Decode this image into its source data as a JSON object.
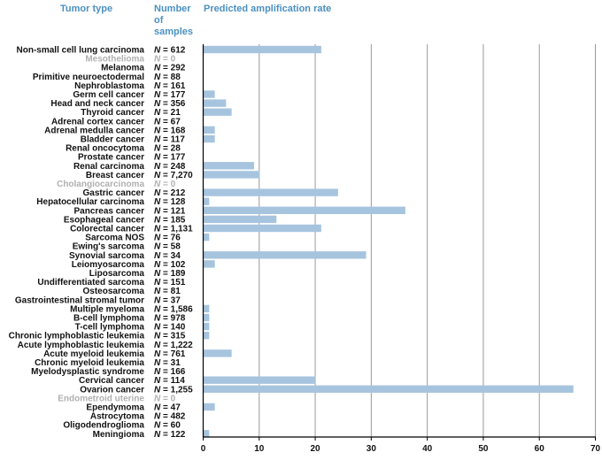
{
  "colors": {
    "header": "#4a90c0",
    "bar": "#a7c4df",
    "label": "#111111",
    "muted": "#b0b0b0",
    "grid": "#9a9a9a"
  },
  "chart_data": {
    "type": "bar",
    "orientation": "horizontal",
    "title": "",
    "column_headers": {
      "tumor_type": "Tumor type",
      "samples": [
        "Number",
        "of",
        "samples"
      ],
      "rate": "Predicted amplification rate"
    },
    "n_prefix": "N",
    "n_sep": " = ",
    "xlim": [
      0,
      70
    ],
    "xticks": [
      0,
      10,
      20,
      30,
      40,
      50,
      60,
      70
    ],
    "grid": true,
    "categories": [
      {
        "name": "Non-small cell lung carcinoma",
        "n": "612",
        "value": 21,
        "muted": false
      },
      {
        "name": "Mesothelioma",
        "n": "0",
        "value": 0,
        "muted": true
      },
      {
        "name": "Melanoma",
        "n": "292",
        "value": 0,
        "muted": false
      },
      {
        "name": "Primitive neuroectodermal",
        "n": "88",
        "value": 0,
        "muted": false
      },
      {
        "name": "Nephroblastoma",
        "n": "161",
        "value": 0,
        "muted": false
      },
      {
        "name": "Germ cell cancer",
        "n": "177",
        "value": 2,
        "muted": false
      },
      {
        "name": "Head and neck cancer",
        "n": "356",
        "value": 4,
        "muted": false
      },
      {
        "name": "Thyroid cancer",
        "n": "21",
        "value": 5,
        "muted": false
      },
      {
        "name": "Adrenal cortex cancer",
        "n": "67",
        "value": 0,
        "muted": false
      },
      {
        "name": "Adrenal medulla cancer",
        "n": "168",
        "value": 2,
        "muted": false
      },
      {
        "name": "Bladder cancer",
        "n": "117",
        "value": 2,
        "muted": false
      },
      {
        "name": "Renal oncocytoma",
        "n": "28",
        "value": 0,
        "muted": false
      },
      {
        "name": "Prostate cancer",
        "n": "177",
        "value": 0,
        "muted": false
      },
      {
        "name": "Renal carcinoma",
        "n": "248",
        "value": 9,
        "muted": false
      },
      {
        "name": "Breast cancer",
        "n": "7,270",
        "value": 10,
        "muted": false
      },
      {
        "name": "Cholangiocarcinoma",
        "n": "0",
        "value": 0,
        "muted": true
      },
      {
        "name": "Gastric cancer",
        "n": "212",
        "value": 24,
        "muted": false
      },
      {
        "name": "Hepatocellular carcinoma",
        "n": "128",
        "value": 1,
        "muted": false
      },
      {
        "name": "Pancreas cancer",
        "n": "121",
        "value": 36,
        "muted": false
      },
      {
        "name": "Esophageal cancer",
        "n": "185",
        "value": 13,
        "muted": false
      },
      {
        "name": "Colorectal cancer",
        "n": "1,131",
        "value": 21,
        "muted": false
      },
      {
        "name": "Sarcoma NOS",
        "n": "76",
        "value": 1,
        "muted": false
      },
      {
        "name": "Ewing's sarcoma",
        "n": "58",
        "value": 0,
        "muted": false
      },
      {
        "name": "Synovial sarcoma",
        "n": "34",
        "value": 29,
        "muted": false
      },
      {
        "name": "Leiomyosarcoma",
        "n": "102",
        "value": 2,
        "muted": false
      },
      {
        "name": "Liposarcoma",
        "n": "189",
        "value": 0,
        "muted": false
      },
      {
        "name": "Undifferentiated sarcoma",
        "n": "151",
        "value": 0,
        "muted": false
      },
      {
        "name": "Osteosarcoma",
        "n": "81",
        "value": 0,
        "muted": false
      },
      {
        "name": "Gastrointestinal stromal tumor",
        "n": "37",
        "value": 0,
        "muted": false
      },
      {
        "name": "Multiple myeloma",
        "n": "1,586",
        "value": 1,
        "muted": false
      },
      {
        "name": "B-cell lymphoma",
        "n": "978",
        "value": 1,
        "muted": false
      },
      {
        "name": "T-cell lymphoma",
        "n": "140",
        "value": 1,
        "muted": false
      },
      {
        "name": "Chronic lymphoblastic leukemia",
        "n": "315",
        "value": 1,
        "muted": false
      },
      {
        "name": "Acute lymphoblastic leukemia",
        "n": "1,222",
        "value": 0,
        "muted": false
      },
      {
        "name": "Acute myeloid leukemia",
        "n": "761",
        "value": 5,
        "muted": false
      },
      {
        "name": "Chronic myeloid leukemia",
        "n": "31",
        "value": 0,
        "muted": false
      },
      {
        "name": "Myelodysplastic syndrome",
        "n": "166",
        "value": 0,
        "muted": false
      },
      {
        "name": "Cervical cancer",
        "n": "114",
        "value": 20,
        "muted": false
      },
      {
        "name": "Ovarion cancer",
        "n": "1,255",
        "value": 66,
        "muted": false
      },
      {
        "name": "Endometroid uterine",
        "n": "0",
        "value": 0,
        "muted": true
      },
      {
        "name": "Ependymoma",
        "n": "47",
        "value": 2,
        "muted": false
      },
      {
        "name": "Astrocytoma",
        "n": "482",
        "value": 0,
        "muted": false
      },
      {
        "name": "Oligodendroglioma",
        "n": "60",
        "value": 0,
        "muted": false
      },
      {
        "name": "Meningioma",
        "n": "122",
        "value": 1,
        "muted": false
      }
    ]
  }
}
